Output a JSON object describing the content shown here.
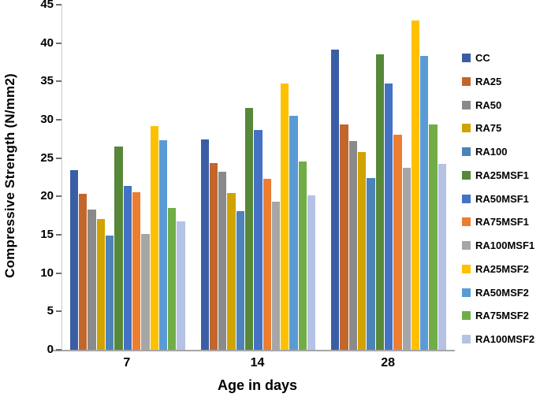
{
  "chart_data": {
    "type": "bar",
    "title": "",
    "xlabel": "Age in days",
    "ylabel": "Compressive Strength (N/mm2)",
    "categories": [
      "7",
      "14",
      "28"
    ],
    "ylim": [
      0,
      45
    ],
    "ytick_step": 5,
    "yticks": [
      0,
      5,
      10,
      15,
      20,
      25,
      30,
      35,
      40,
      45
    ],
    "grid": false,
    "legend_position": "right",
    "series": [
      {
        "name": "CC",
        "color": "#3A5EA5",
        "values": [
          23.4,
          27.4,
          39.1
        ]
      },
      {
        "name": "RA25",
        "color": "#C2662C",
        "values": [
          20.3,
          24.3,
          29.4
        ]
      },
      {
        "name": "RA50",
        "color": "#8A8A8A",
        "values": [
          18.3,
          23.2,
          27.2
        ]
      },
      {
        "name": "RA75",
        "color": "#D0A300",
        "values": [
          17.1,
          20.4,
          25.8
        ]
      },
      {
        "name": "RA100",
        "color": "#4C83B8",
        "values": [
          14.9,
          18.1,
          22.4
        ]
      },
      {
        "name": "RA25MSF1",
        "color": "#578738",
        "values": [
          26.5,
          31.5,
          38.5
        ]
      },
      {
        "name": "RA50MSF1",
        "color": "#4472C4",
        "values": [
          21.4,
          28.7,
          34.7
        ]
      },
      {
        "name": "RA75MSF1",
        "color": "#ED7D31",
        "values": [
          20.5,
          22.3,
          28.0
        ]
      },
      {
        "name": "RA100MSF1",
        "color": "#A6A6A6",
        "values": [
          15.1,
          19.3,
          23.7
        ]
      },
      {
        "name": "RA25MSF2",
        "color": "#FFC000",
        "values": [
          29.2,
          34.7,
          42.9
        ]
      },
      {
        "name": "RA50MSF2",
        "color": "#5B9BD5",
        "values": [
          27.3,
          30.5,
          38.3
        ]
      },
      {
        "name": "RA75MSF2",
        "color": "#70AD47",
        "values": [
          18.5,
          24.6,
          29.4
        ]
      },
      {
        "name": "RA100MSF2",
        "color": "#B4C2E4",
        "values": [
          16.7,
          20.1,
          24.2
        ]
      }
    ]
  }
}
